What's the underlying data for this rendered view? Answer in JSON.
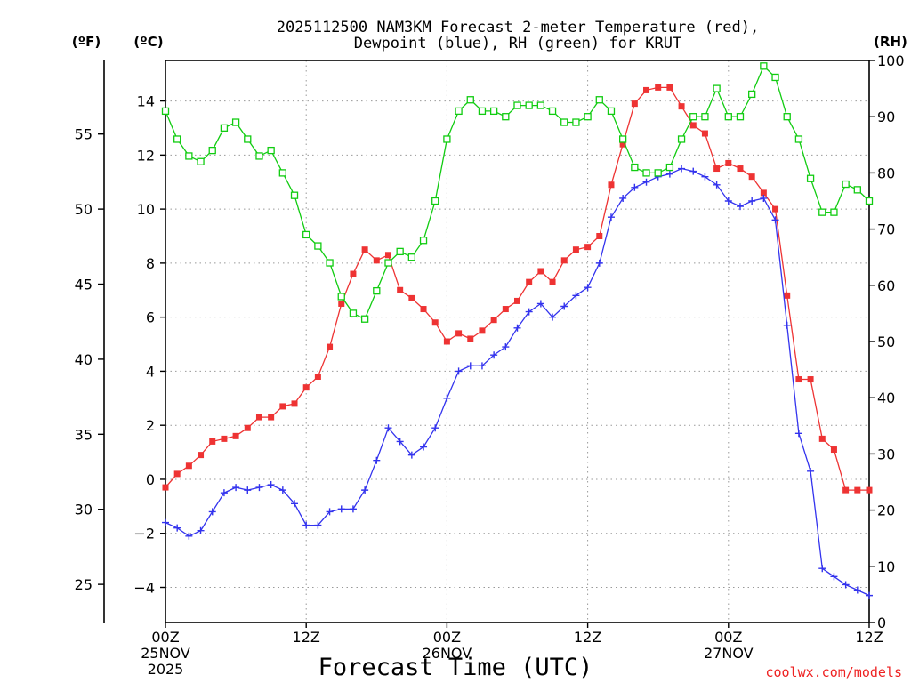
{
  "chart_data": {
    "type": "line",
    "title_line1": "2025112500 NAM3KM Forecast 2-meter Temperature (red),",
    "title_line2": "Dewpoint (blue), RH (green) for KRUT",
    "xlabel": "Forecast Time (UTC)",
    "credit": "coolwx.com/models",
    "left_f_unit": "(ºF)",
    "left_c_unit": "(ºC)",
    "right_unit": "(RH)",
    "xlim": [
      0,
      60
    ],
    "ylim_c": [
      -5.3,
      15.5
    ],
    "ylim_rh": [
      0,
      100
    ],
    "x_ticks": [
      {
        "x": 0,
        "label": "00Z",
        "sub1": "25NOV",
        "sub2": "2025"
      },
      {
        "x": 12,
        "label": "12Z",
        "sub1": "",
        "sub2": ""
      },
      {
        "x": 24,
        "label": "00Z",
        "sub1": "26NOV",
        "sub2": ""
      },
      {
        "x": 36,
        "label": "12Z",
        "sub1": "",
        "sub2": ""
      },
      {
        "x": 48,
        "label": "00Z",
        "sub1": "27NOV",
        "sub2": ""
      },
      {
        "x": 60,
        "label": "12Z",
        "sub1": "",
        "sub2": ""
      }
    ],
    "y_ticks_c": [
      {
        "value": -4,
        "label": "−4"
      },
      {
        "value": -2,
        "label": "−2"
      },
      {
        "value": 0,
        "label": "0"
      },
      {
        "value": 2,
        "label": "2"
      },
      {
        "value": 4,
        "label": "4"
      },
      {
        "value": 6,
        "label": "6"
      },
      {
        "value": 8,
        "label": "8"
      },
      {
        "value": 10,
        "label": "10"
      },
      {
        "value": 12,
        "label": "12"
      },
      {
        "value": 14,
        "label": "14"
      }
    ],
    "y_ticks_f": [
      {
        "value": 25,
        "label": "25"
      },
      {
        "value": 30,
        "label": "30"
      },
      {
        "value": 35,
        "label": "35"
      },
      {
        "value": 40,
        "label": "40"
      },
      {
        "value": 45,
        "label": "45"
      },
      {
        "value": 50,
        "label": "50"
      },
      {
        "value": 55,
        "label": "55"
      }
    ],
    "y_ticks_rh": [
      {
        "value": 0,
        "label": "0"
      },
      {
        "value": 10,
        "label": "10"
      },
      {
        "value": 20,
        "label": "20"
      },
      {
        "value": 30,
        "label": "30"
      },
      {
        "value": 40,
        "label": "40"
      },
      {
        "value": 50,
        "label": "50"
      },
      {
        "value": 60,
        "label": "60"
      },
      {
        "value": 70,
        "label": "70"
      },
      {
        "value": 80,
        "label": "80"
      },
      {
        "value": 90,
        "label": "90"
      },
      {
        "value": 100,
        "label": "100"
      }
    ],
    "series": [
      {
        "name": "2-meter Temperature",
        "axis": "C",
        "color": "#ee3333",
        "marker": "filled-square",
        "x": [
          0,
          1,
          2,
          3,
          4,
          5,
          6,
          7,
          8,
          9,
          10,
          11,
          12,
          13,
          14,
          15,
          16,
          17,
          18,
          19,
          20,
          21,
          22,
          23,
          24,
          25,
          26,
          27,
          28,
          29,
          30,
          31,
          32,
          33,
          34,
          35,
          36,
          37,
          38,
          39,
          40,
          41,
          42,
          43,
          44,
          45,
          46,
          47,
          48,
          49,
          50,
          51,
          52,
          53,
          54,
          55,
          56,
          57,
          58,
          59,
          60
        ],
        "values": [
          -0.3,
          0.2,
          0.5,
          0.9,
          1.4,
          1.5,
          1.6,
          1.9,
          2.3,
          2.3,
          2.7,
          2.8,
          3.4,
          3.8,
          4.9,
          6.5,
          7.6,
          8.5,
          8.1,
          8.3,
          7.0,
          6.7,
          6.3,
          5.8,
          5.1,
          5.4,
          5.2,
          5.5,
          5.9,
          6.3,
          6.6,
          7.3,
          7.7,
          7.3,
          8.1,
          8.5,
          8.6,
          9.0,
          10.9,
          12.4,
          13.9,
          14.4,
          14.5,
          14.5,
          13.8,
          13.1,
          12.8,
          11.5,
          11.7,
          11.5,
          11.2,
          10.6,
          10.0,
          6.8,
          3.7,
          3.7,
          1.5,
          1.1,
          -0.4,
          -0.4,
          -0.4
        ]
      },
      {
        "name": "Dewpoint",
        "axis": "C",
        "color": "#3333ee",
        "marker": "plus",
        "x": [
          0,
          1,
          2,
          3,
          4,
          5,
          6,
          7,
          8,
          9,
          10,
          11,
          12,
          13,
          14,
          15,
          16,
          17,
          18,
          19,
          20,
          21,
          22,
          23,
          24,
          25,
          26,
          27,
          28,
          29,
          30,
          31,
          32,
          33,
          34,
          35,
          36,
          37,
          38,
          39,
          40,
          41,
          42,
          43,
          44,
          45,
          46,
          47,
          48,
          49,
          50,
          51,
          52,
          53,
          54,
          55,
          56,
          57,
          58,
          59,
          60
        ],
        "values": [
          -1.6,
          -1.8,
          -2.1,
          -1.9,
          -1.2,
          -0.5,
          -0.3,
          -0.4,
          -0.3,
          -0.2,
          -0.4,
          -0.9,
          -1.7,
          -1.7,
          -1.2,
          -1.1,
          -1.1,
          -0.4,
          0.7,
          1.9,
          1.4,
          0.9,
          1.2,
          1.9,
          3.0,
          4.0,
          4.2,
          4.2,
          4.6,
          4.9,
          5.6,
          6.2,
          6.5,
          6.0,
          6.4,
          6.8,
          7.1,
          8.0,
          9.7,
          10.4,
          10.8,
          11.0,
          11.2,
          11.3,
          11.5,
          11.4,
          11.2,
          10.9,
          10.3,
          10.1,
          10.3,
          10.4,
          9.6,
          5.7,
          1.7,
          0.3,
          -3.3,
          -3.6,
          -3.9,
          -4.1,
          -4.3
        ]
      },
      {
        "name": "RH",
        "axis": "RH",
        "color": "#11cc11",
        "marker": "open-square",
        "x": [
          0,
          1,
          2,
          3,
          4,
          5,
          6,
          7,
          8,
          9,
          10,
          11,
          12,
          13,
          14,
          15,
          16,
          17,
          18,
          19,
          20,
          21,
          22,
          23,
          24,
          25,
          26,
          27,
          28,
          29,
          30,
          31,
          32,
          33,
          34,
          35,
          36,
          37,
          38,
          39,
          40,
          41,
          42,
          43,
          44,
          45,
          46,
          47,
          48,
          49,
          50,
          51,
          52,
          53,
          54,
          55,
          56,
          57,
          58,
          59,
          60
        ],
        "values": [
          91,
          86,
          83,
          82,
          84,
          88,
          89,
          86,
          83,
          84,
          80,
          76,
          69,
          67,
          64,
          58,
          55,
          54,
          59,
          64,
          66,
          65,
          68,
          75,
          86,
          91,
          93,
          91,
          91,
          90,
          92,
          92,
          92,
          91,
          89,
          89,
          90,
          93,
          91,
          86,
          81,
          80,
          80,
          81,
          86,
          90,
          90,
          95,
          90,
          90,
          94,
          99,
          97,
          90,
          86,
          79,
          73,
          73,
          78,
          77,
          75
        ]
      }
    ]
  }
}
